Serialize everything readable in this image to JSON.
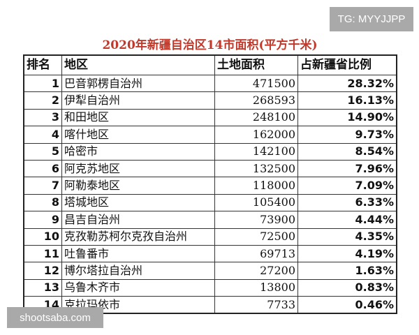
{
  "watermarks": {
    "top_right": "TG: MYYJJPP",
    "bottom_left": "shootsaba.com"
  },
  "title": "2020年新疆自治区14市面积(平方千米)",
  "title_color": "#c0392b",
  "headers": [
    "排名",
    "地区",
    "土地面积",
    "占新疆省比例"
  ],
  "rows": [
    [
      "1",
      "巴音郭楞自治州",
      "471500",
      "28.32%"
    ],
    [
      "2",
      "伊犁自治州",
      "268593",
      "16.13%"
    ],
    [
      "3",
      "和田地区",
      "248100",
      "14.90%"
    ],
    [
      "4",
      "喀什地区",
      "162000",
      "9.73%"
    ],
    [
      "5",
      "哈密市",
      "142100",
      "8.54%"
    ],
    [
      "6",
      "阿克苏地区",
      "132500",
      "7.96%"
    ],
    [
      "7",
      "阿勒泰地区",
      "118000",
      "7.09%"
    ],
    [
      "8",
      "塔城地区",
      "105400",
      "6.33%"
    ],
    [
      "9",
      "昌吉自治州",
      "73900",
      "4.44%"
    ],
    [
      "10",
      "克孜勒苏柯尔克孜自治州",
      "72500",
      "4.35%"
    ],
    [
      "11",
      "吐鲁番市",
      "69713",
      "4.19%"
    ],
    [
      "12",
      "博尔塔拉自治州",
      "27200",
      "1.63%"
    ],
    [
      "13",
      "乌鲁木齐市",
      "13800",
      "0.83%"
    ],
    [
      "14",
      "克拉玛依市",
      "7733",
      "0.46%"
    ]
  ]
}
